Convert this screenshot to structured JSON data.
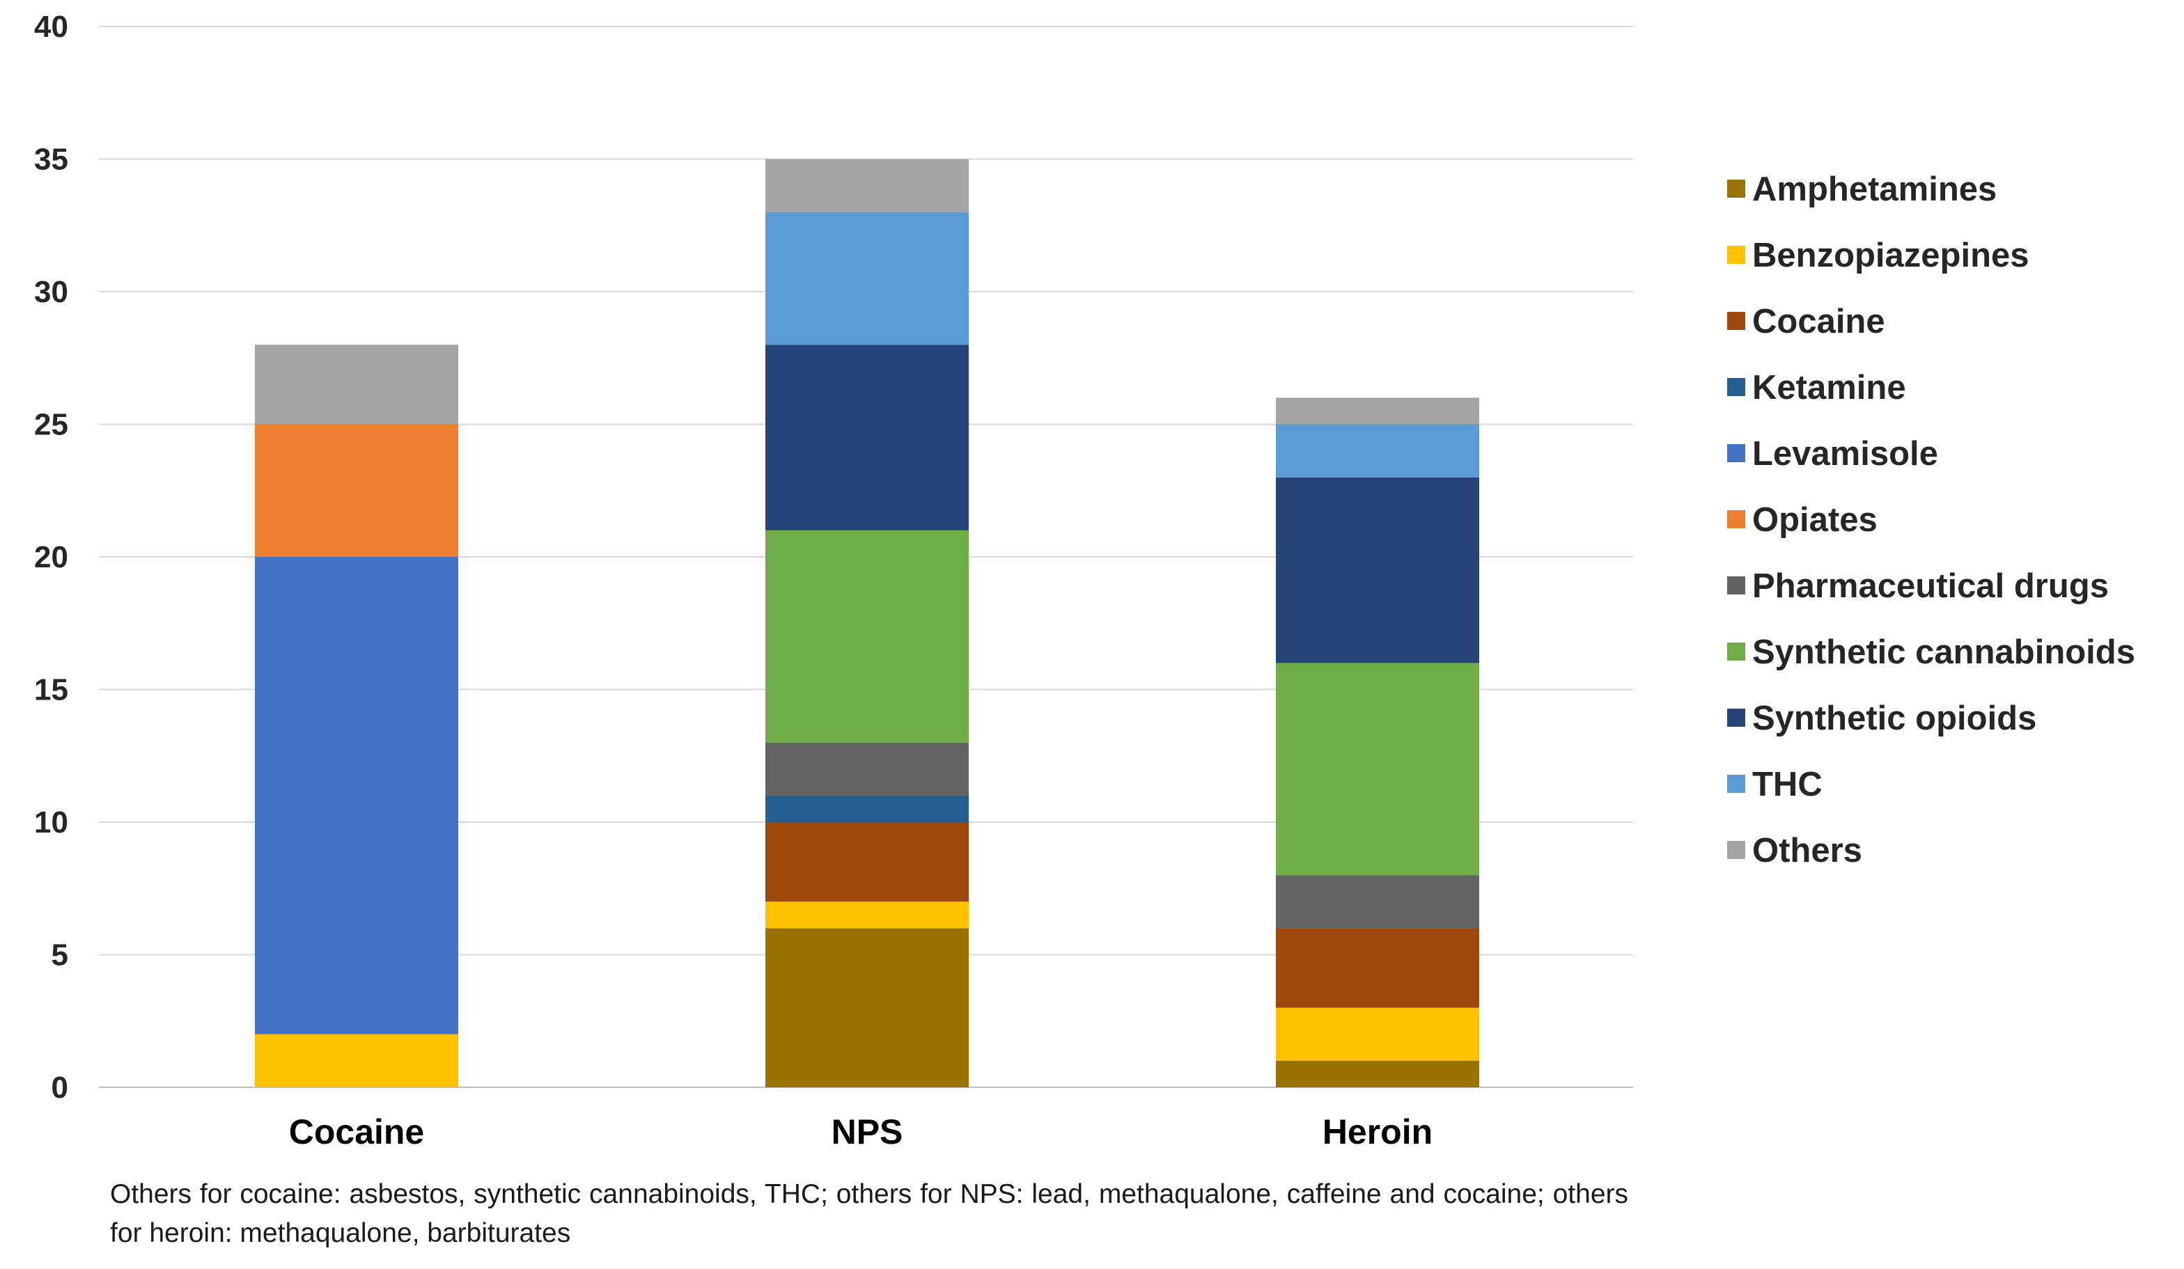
{
  "chart_data": {
    "type": "bar",
    "stacked": true,
    "title": "",
    "xlabel": "",
    "ylabel": "",
    "ylim": [
      0,
      40
    ],
    "yticks": [
      0,
      5,
      10,
      15,
      20,
      25,
      30,
      35,
      40
    ],
    "grid": true,
    "legend_position": "right",
    "categories": [
      "Cocaine",
      "NPS",
      "Heroin"
    ],
    "series": [
      {
        "name": "Amphetamines",
        "color": "#997300",
        "values": [
          0,
          6,
          1
        ]
      },
      {
        "name": "Benzopiazepines",
        "color": "#FFC000",
        "values": [
          2,
          1,
          2
        ]
      },
      {
        "name": "Cocaine",
        "color": "#9E480E",
        "values": [
          0,
          3,
          3
        ]
      },
      {
        "name": "Ketamine",
        "color": "#255E91",
        "values": [
          0,
          1,
          0
        ]
      },
      {
        "name": "Levamisole",
        "color": "#4472C4",
        "values": [
          18,
          0,
          0
        ]
      },
      {
        "name": "Opiates",
        "color": "#ED7D31",
        "values": [
          5,
          0,
          0
        ]
      },
      {
        "name": "Pharmaceutical drugs",
        "color": "#636363",
        "values": [
          0,
          2,
          2
        ]
      },
      {
        "name": "Synthetic cannabinoids",
        "color": "#70AD47",
        "values": [
          0,
          8,
          8
        ]
      },
      {
        "name": "Synthetic opioids",
        "color": "#264478",
        "values": [
          0,
          7,
          7
        ]
      },
      {
        "name": "THC",
        "color": "#5B9BD5",
        "values": [
          0,
          5,
          2
        ]
      },
      {
        "name": "Others",
        "color": "#A5A5A5",
        "values": [
          3,
          2,
          1
        ]
      }
    ],
    "footnote": "Others for cocaine: asbestos, synthetic cannabinoids, THC; others for NPS: lead, methaqualone, caffeine and cocaine; others for heroin: methaqualone, barbiturates"
  }
}
